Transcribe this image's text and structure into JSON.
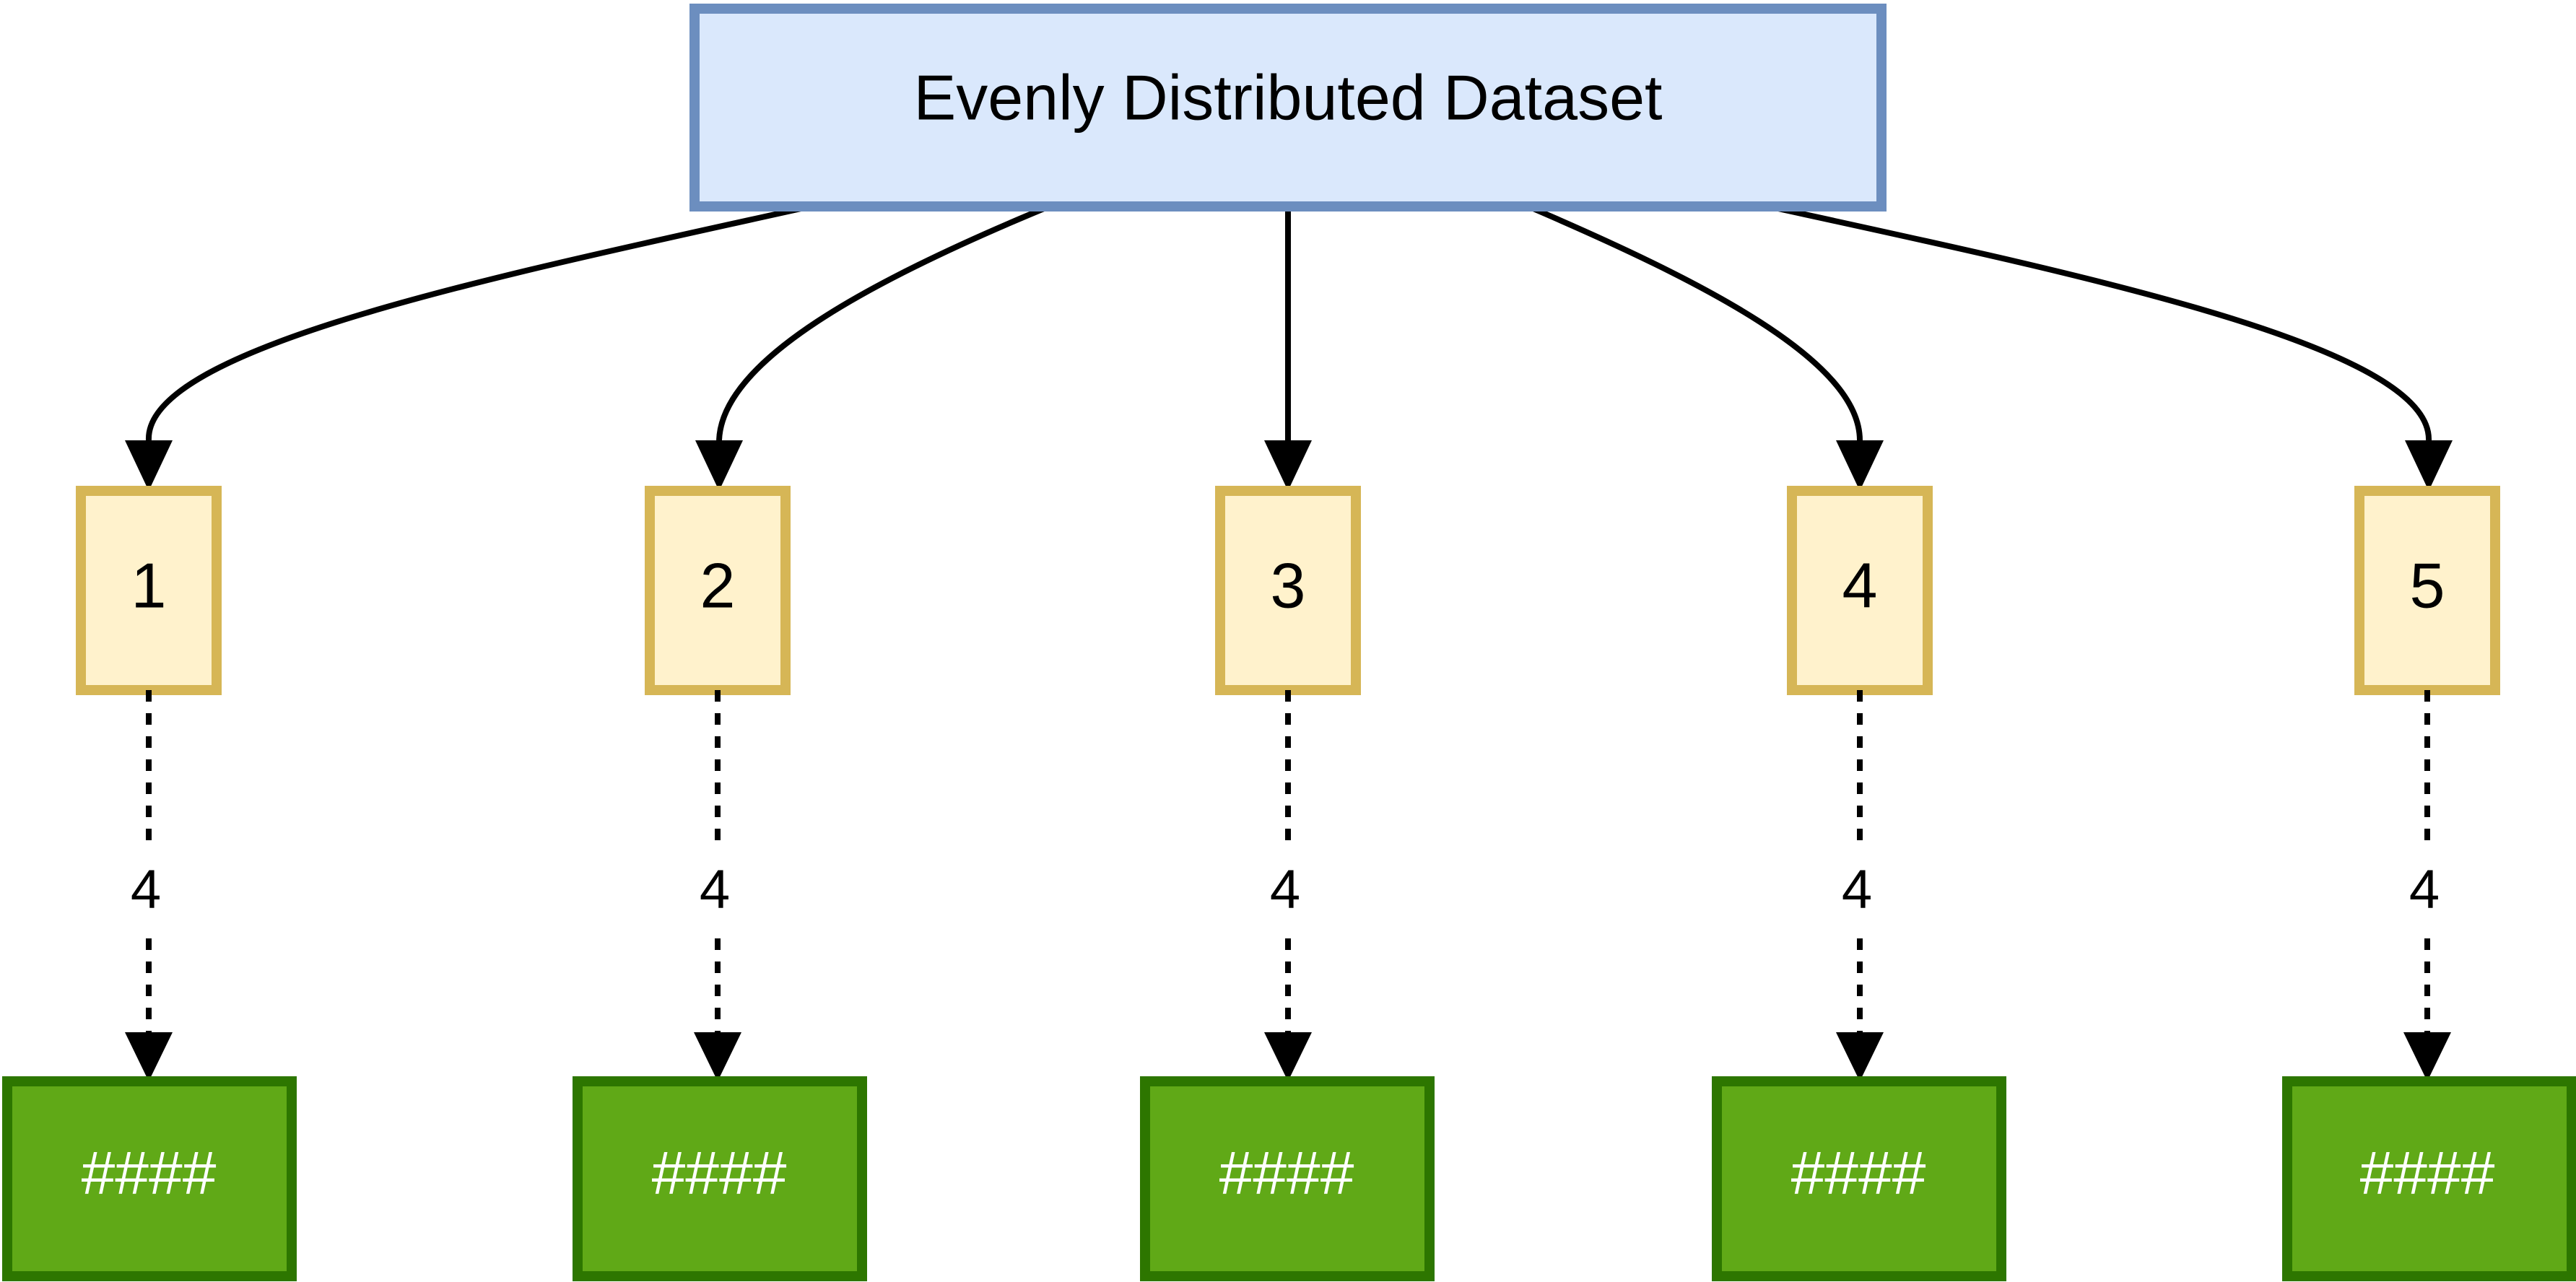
{
  "colors": {
    "dataset_fill": "#dae8fc",
    "dataset_stroke": "#6c8ebf",
    "partition_fill": "#fff2cc",
    "partition_stroke": "#d6b656",
    "output_fill": "#60a917",
    "output_stroke": "#2d7600",
    "edge": "#000000"
  },
  "dataset": {
    "label": "Evenly Distributed Dataset"
  },
  "partitions": [
    {
      "label": "1",
      "edge_label": "4",
      "output_label": "####"
    },
    {
      "label": "2",
      "edge_label": "4",
      "output_label": "####"
    },
    {
      "label": "3",
      "edge_label": "4",
      "output_label": "####"
    },
    {
      "label": "4",
      "edge_label": "4",
      "output_label": "####"
    },
    {
      "label": "5",
      "edge_label": "4",
      "output_label": "####"
    }
  ]
}
